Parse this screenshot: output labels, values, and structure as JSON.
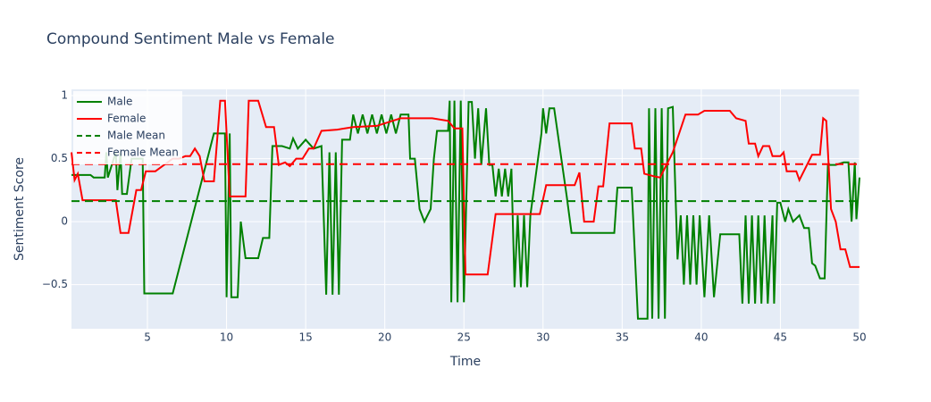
{
  "chart_data": {
    "type": "line",
    "title": "Compound Sentiment Male vs Female",
    "x_label": "Time",
    "y_label": "Sentiment Score",
    "xlim": [
      0.2,
      50
    ],
    "ylim": [
      -0.85,
      1.05
    ],
    "xticks": [
      5,
      10,
      15,
      20,
      25,
      30,
      35,
      40,
      45,
      50
    ],
    "yticks": [
      {
        "value": -0.5,
        "label": "−0.5"
      },
      0,
      0.5,
      1
    ],
    "grid": true,
    "legend": "top-left",
    "series": [
      {
        "name": "Male",
        "color": "green",
        "dash": "solid",
        "x": [
          0.2,
          1.4,
          1.6,
          2.3,
          2.4,
          2.5,
          3.0,
          3.1,
          3.3,
          3.4,
          3.7,
          4.0,
          4.7,
          4.8,
          6.6,
          9.2,
          9.9,
          10.0,
          10.2,
          10.3,
          10.7,
          10.9,
          11.2,
          12.0,
          12.3,
          12.7,
          12.9,
          13.5,
          14.0,
          14.2,
          14.5,
          15.0,
          15.5,
          16.0,
          16.3,
          16.5,
          16.7,
          16.9,
          17.1,
          17.3,
          17.8,
          18.0,
          18.3,
          18.6,
          18.9,
          19.2,
          19.5,
          19.8,
          20.1,
          20.4,
          20.7,
          21.0,
          21.5,
          21.6,
          21.9,
          22.2,
          22.5,
          22.9,
          23.1,
          23.3,
          24.0,
          24.1,
          24.2,
          24.4,
          24.6,
          24.8,
          25.0,
          25.3,
          25.5,
          25.7,
          25.9,
          26.1,
          26.4,
          26.6,
          26.8,
          27.0,
          27.2,
          27.4,
          27.6,
          27.8,
          28.0,
          28.2,
          28.4,
          28.6,
          28.8,
          29.0,
          29.2,
          29.9,
          30.0,
          30.2,
          30.4,
          30.7,
          31.5,
          31.8,
          34.5,
          34.7,
          35.6,
          36.0,
          36.6,
          36.7,
          36.9,
          37.1,
          37.3,
          37.5,
          37.7,
          37.9,
          38.2,
          38.5,
          38.7,
          38.9,
          39.1,
          39.3,
          39.5,
          39.7,
          39.9,
          40.2,
          40.5,
          40.8,
          41.2,
          42.4,
          42.6,
          42.8,
          43.0,
          43.2,
          43.4,
          43.6,
          43.8,
          44.0,
          44.2,
          44.5,
          44.6,
          44.8,
          45.0,
          45.3,
          45.5,
          45.8,
          46.2,
          46.5,
          46.8,
          47.0,
          47.2,
          47.5,
          47.8,
          48.0,
          48.5,
          49.0,
          49.3,
          49.5,
          49.7,
          49.8,
          50.0
        ],
        "values": [
          0.37,
          0.37,
          0.35,
          0.35,
          0.55,
          0.35,
          0.55,
          0.25,
          0.55,
          0.22,
          0.22,
          0.5,
          0.5,
          -0.57,
          -0.57,
          0.7,
          0.7,
          -0.6,
          0.7,
          -0.6,
          -0.6,
          0,
          -0.29,
          -0.29,
          -0.13,
          -0.13,
          0.6,
          0.6,
          0.58,
          0.66,
          0.58,
          0.65,
          0.58,
          0.6,
          -0.58,
          0.55,
          -0.58,
          0.55,
          -0.58,
          0.65,
          0.65,
          0.85,
          0.7,
          0.85,
          0.7,
          0.85,
          0.7,
          0.85,
          0.7,
          0.85,
          0.7,
          0.85,
          0.85,
          0.5,
          0.5,
          0.1,
          0,
          0.1,
          0.5,
          0.72,
          0.72,
          0.96,
          -0.64,
          0.96,
          -0.64,
          0.96,
          -0.64,
          0.95,
          0.95,
          0.5,
          0.9,
          0.45,
          0.9,
          0.45,
          0.45,
          0.2,
          0.42,
          0.2,
          0.42,
          0.2,
          0.42,
          -0.52,
          0.05,
          -0.52,
          0.05,
          -0.52,
          0.05,
          0.7,
          0.9,
          0.7,
          0.9,
          0.9,
          0.2,
          -0.09,
          -0.09,
          0.27,
          0.27,
          -0.77,
          -0.77,
          0.9,
          -0.77,
          0.9,
          -0.77,
          0.9,
          -0.77,
          0.9,
          0.91,
          -0.3,
          0.05,
          -0.5,
          0.05,
          -0.5,
          0.05,
          -0.5,
          0.05,
          -0.6,
          0.05,
          -0.6,
          -0.1,
          -0.1,
          -0.65,
          0.05,
          -0.65,
          0.05,
          -0.65,
          0.05,
          -0.65,
          0.05,
          -0.65,
          0.05,
          -0.65,
          0.15,
          0.15,
          0,
          0.1,
          0,
          0.05,
          -0.05,
          -0.05,
          -0.33,
          -0.35,
          -0.45,
          -0.45,
          0.45,
          0.45,
          0.47,
          0.47,
          0,
          0.47,
          0.02,
          0.35
        ]
      },
      {
        "name": "Female",
        "color": "red",
        "dash": "solid",
        "x": [
          0.2,
          0.4,
          0.6,
          0.9,
          1.5,
          2.5,
          3.0,
          3.3,
          3.8,
          4.3,
          4.6,
          4.9,
          5.5,
          6.6,
          7.0,
          7.4,
          7.7,
          8.0,
          8.3,
          8.6,
          9.2,
          9.6,
          9.9,
          10.2,
          11.2,
          11.4,
          12.0,
          12.5,
          13.0,
          13.3,
          13.7,
          14.0,
          14.4,
          14.8,
          15.2,
          15.5,
          16.0,
          17.0,
          18.0,
          19.5,
          20.0,
          21.0,
          23.0,
          24.0,
          24.4,
          24.9,
          25.1,
          26.5,
          27.0,
          29.8,
          30.2,
          32.0,
          32.3,
          32.6,
          33.2,
          33.5,
          33.8,
          34.2,
          35.6,
          35.8,
          36.2,
          36.4,
          37.0,
          37.4,
          38.2,
          39.0,
          39.8,
          40.2,
          41.8,
          42.2,
          42.8,
          43.0,
          43.4,
          43.6,
          43.9,
          44.3,
          44.5,
          45.0,
          45.2,
          45.4,
          46.0,
          46.2,
          46.8,
          47.0,
          47.5,
          47.7,
          47.9,
          48.2,
          48.5,
          48.8,
          49.1,
          49.4,
          50.0
        ],
        "values": [
          0.55,
          0.33,
          0.38,
          0.17,
          0.17,
          0.17,
          0.17,
          -0.09,
          -0.09,
          0.25,
          0.25,
          0.4,
          0.4,
          0.5,
          0.5,
          0.52,
          0.52,
          0.58,
          0.52,
          0.32,
          0.32,
          0.96,
          0.96,
          0.2,
          0.2,
          0.96,
          0.96,
          0.75,
          0.75,
          0.45,
          0.47,
          0.44,
          0.5,
          0.5,
          0.58,
          0.58,
          0.72,
          0.73,
          0.75,
          0.76,
          0.78,
          0.82,
          0.82,
          0.8,
          0.74,
          0.74,
          -0.42,
          -0.42,
          0.06,
          0.06,
          0.29,
          0.29,
          0.39,
          0,
          0,
          0.28,
          0.28,
          0.78,
          0.78,
          0.58,
          0.58,
          0.38,
          0.36,
          0.35,
          0.55,
          0.85,
          0.85,
          0.88,
          0.88,
          0.82,
          0.8,
          0.62,
          0.62,
          0.52,
          0.6,
          0.6,
          0.52,
          0.52,
          0.55,
          0.4,
          0.4,
          0.33,
          0.48,
          0.53,
          0.53,
          0.82,
          0.8,
          0.1,
          0,
          -0.22,
          -0.22,
          -0.36,
          -0.36
        ]
      },
      {
        "name": "Male Mean",
        "color": "green",
        "dash": "dash",
        "x": [
          0.2,
          50
        ],
        "values": [
          0.163,
          0.163
        ]
      },
      {
        "name": "Female Mean",
        "color": "red",
        "dash": "dash",
        "x": [
          0.2,
          50
        ],
        "values": [
          0.456,
          0.456
        ]
      }
    ]
  }
}
